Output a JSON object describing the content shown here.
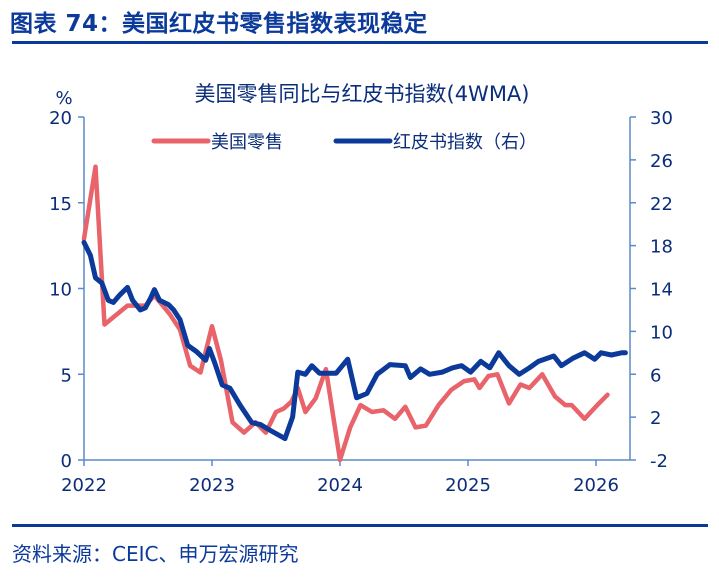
{
  "figure": {
    "title": "图表 74：美国红皮书零售指数表现稳定",
    "source": "资料来源：CEIC、申万宏源研究"
  },
  "colors": {
    "retail": "#e8636a",
    "redbook": "#0b3a9a",
    "axis": "#5b8ac8",
    "text": "#0b2d7a"
  },
  "chart_data": {
    "type": "line",
    "title": "美国零售同比与红皮书指数(4WMA)",
    "xlabel": "",
    "ylabel": "%",
    "ylim": [
      0,
      20
    ],
    "y2lim": [
      -2,
      30
    ],
    "xlim": [
      2022,
      2026.3
    ],
    "yticks": [
      0,
      5,
      10,
      15,
      20
    ],
    "y2ticks": [
      -2,
      2,
      6,
      10,
      14,
      18,
      22,
      26,
      30
    ],
    "xticks": [
      2022,
      2023,
      2024,
      2025,
      2026
    ],
    "xtick_labels": [
      "2022",
      "2023",
      "2024",
      "2025",
      "2026"
    ],
    "grid": false,
    "legend_position": "top-center",
    "series": [
      {
        "name": "美国零售",
        "axis": "left",
        "x": [
          2022.0,
          2022.09,
          2022.16,
          2022.34,
          2022.48,
          2022.55,
          2022.67,
          2022.75,
          2022.83,
          2022.91,
          2023.0,
          2023.07,
          2023.16,
          2023.25,
          2023.34,
          2023.42,
          2023.5,
          2023.56,
          2023.62,
          2023.67,
          2023.73,
          2023.81,
          2023.89,
          2024.0,
          2024.08,
          2024.16,
          2024.25,
          2024.34,
          2024.43,
          2024.51,
          2024.59,
          2024.67,
          2024.77,
          2024.87,
          2024.97,
          2025.05,
          2025.09,
          2025.16,
          2025.23,
          2025.32,
          2025.41,
          2025.48,
          2025.58,
          2025.68,
          2025.76,
          2025.81,
          2025.91,
          2026.01,
          2026.09
        ],
        "values": [
          12.9,
          17.1,
          7.9,
          9.0,
          9.0,
          9.6,
          8.5,
          7.6,
          5.5,
          5.1,
          7.8,
          5.8,
          2.2,
          1.6,
          2.2,
          1.6,
          2.8,
          3.0,
          3.4,
          4.2,
          2.8,
          3.6,
          5.3,
          0.0,
          1.9,
          3.2,
          2.8,
          2.9,
          2.4,
          3.1,
          1.9,
          2.0,
          3.2,
          4.1,
          4.6,
          4.7,
          4.2,
          4.9,
          5.0,
          3.3,
          4.4,
          4.2,
          5.0,
          3.7,
          3.2,
          3.2,
          2.4,
          3.2,
          3.8
        ]
      },
      {
        "name": "红皮书指数（右）",
        "axis": "right",
        "x": [
          2022.0,
          2022.05,
          2022.09,
          2022.14,
          2022.19,
          2022.23,
          2022.28,
          2022.34,
          2022.38,
          2022.44,
          2022.48,
          2022.52,
          2022.55,
          2022.59,
          2022.66,
          2022.7,
          2022.75,
          2022.81,
          2022.88,
          2022.95,
          2022.98,
          2023.02,
          2023.08,
          2023.14,
          2023.22,
          2023.31,
          2023.38,
          2023.45,
          2023.57,
          2023.63,
          2023.67,
          2023.73,
          2023.78,
          2023.84,
          2023.97,
          2024.06,
          2024.13,
          2024.21,
          2024.29,
          2024.39,
          2024.51,
          2024.55,
          2024.63,
          2024.7,
          2024.8,
          2024.88,
          2024.95,
          2025.02,
          2025.1,
          2025.17,
          2025.24,
          2025.32,
          2025.4,
          2025.48,
          2025.55,
          2025.67,
          2025.73,
          2025.82,
          2025.91,
          2025.99,
          2026.04,
          2026.12,
          2026.2,
          2026.23
        ],
        "values": [
          18.3,
          17.1,
          15.0,
          14.5,
          12.9,
          12.7,
          13.4,
          14.1,
          12.9,
          12.0,
          12.2,
          13.1,
          13.9,
          12.9,
          12.5,
          12.0,
          11.1,
          8.7,
          8.1,
          7.3,
          8.4,
          7.1,
          5.0,
          4.7,
          3.1,
          1.5,
          1.3,
          0.8,
          0.0,
          2.0,
          6.2,
          6.0,
          6.8,
          6.1,
          6.1,
          7.4,
          3.8,
          4.2,
          6.0,
          6.9,
          6.8,
          5.7,
          6.5,
          6.0,
          6.2,
          6.6,
          6.8,
          6.2,
          7.2,
          6.6,
          8.0,
          6.8,
          6.0,
          6.6,
          7.2,
          7.7,
          6.8,
          7.5,
          8.0,
          7.4,
          8.0,
          7.8,
          8.0,
          8.0
        ]
      }
    ]
  }
}
